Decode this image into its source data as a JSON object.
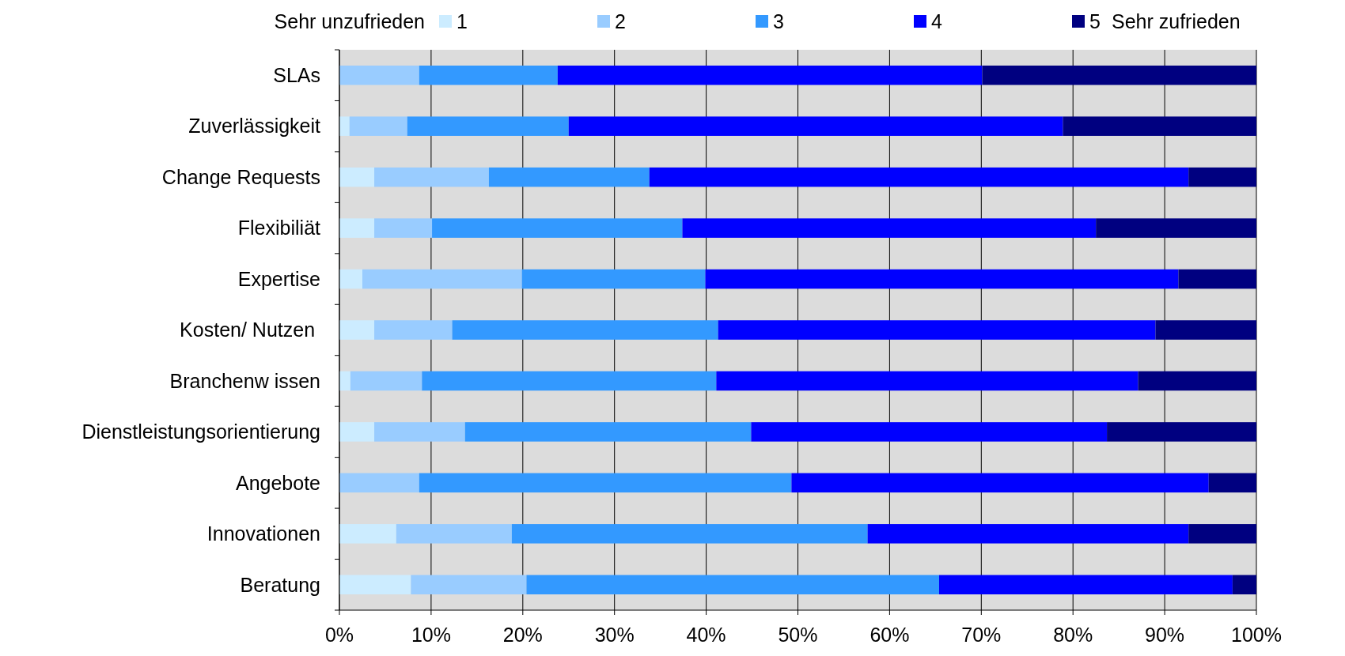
{
  "chart_data": {
    "type": "bar",
    "orientation": "horizontal",
    "stacked": true,
    "categories": [
      "SLAs",
      "Zuverlässigkeit",
      "Change Requests",
      "Flexibiliät",
      "Expertise",
      "Kosten/ Nutzen ",
      "Branchenw issen",
      "Dienstleistungsorientierung",
      "Angebote",
      "Innovationen",
      "Beratung"
    ],
    "series": [
      {
        "name": "1",
        "color": "#ccecff",
        "values": [
          0,
          1.1,
          3.8,
          3.8,
          2.5,
          3.8,
          1.2,
          3.8,
          0,
          6.2,
          7.8
        ]
      },
      {
        "name": "2",
        "color": "#99ccff",
        "values": [
          8.7,
          6.3,
          12.5,
          6.3,
          17.4,
          8.5,
          7.8,
          9.9,
          8.7,
          12.6,
          12.6
        ]
      },
      {
        "name": "3",
        "color": "#3399ff",
        "values": [
          15.1,
          17.6,
          17.5,
          27.3,
          20.0,
          29.0,
          32.1,
          31.2,
          40.6,
          38.8,
          45.0
        ]
      },
      {
        "name": "4",
        "color": "#0000ff",
        "values": [
          46.3,
          53.9,
          58.8,
          45.1,
          51.6,
          47.7,
          46.0,
          38.8,
          45.5,
          35.0,
          32.0
        ]
      },
      {
        "name": "5",
        "color": "#000080",
        "values": [
          29.9,
          21.1,
          7.4,
          17.5,
          8.5,
          11.0,
          12.9,
          16.3,
          5.2,
          7.4,
          2.6
        ]
      }
    ],
    "xlim": [
      0,
      100
    ],
    "xticks": [
      {
        "value": 0,
        "label": "0%"
      },
      {
        "value": 10,
        "label": "10%"
      },
      {
        "value": 20,
        "label": "20%"
      },
      {
        "value": 30,
        "label": "30%"
      },
      {
        "value": 40,
        "label": "40%"
      },
      {
        "value": 50,
        "label": "50%"
      },
      {
        "value": 60,
        "label": "60%"
      },
      {
        "value": 70,
        "label": "70%"
      },
      {
        "value": 80,
        "label": "80%"
      },
      {
        "value": 90,
        "label": "90%"
      },
      {
        "value": 100,
        "label": "100%"
      }
    ],
    "grid": "x",
    "legend": "top",
    "annotations": [
      "Sehr unzufrieden",
      "Sehr zufrieden"
    ]
  }
}
